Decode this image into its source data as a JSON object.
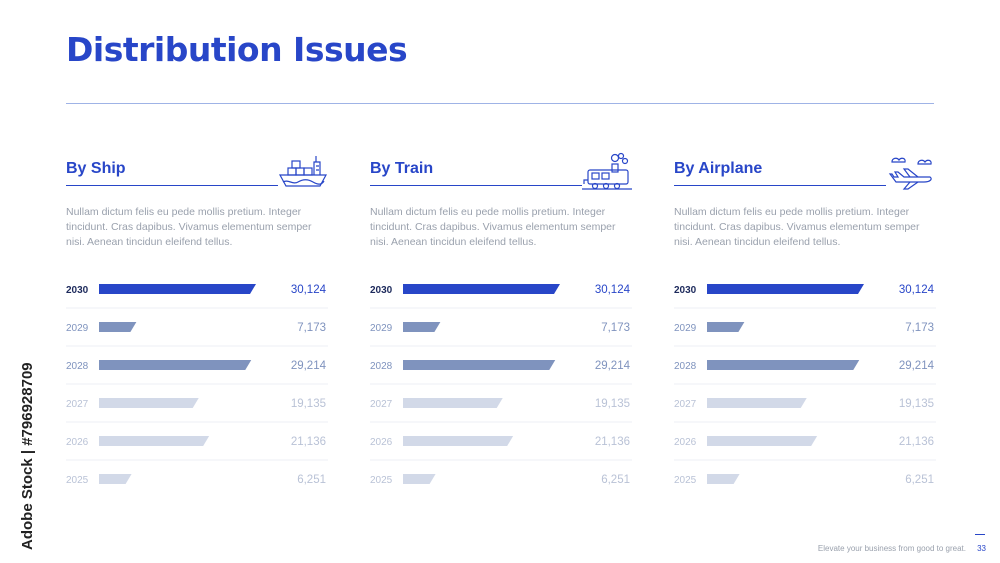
{
  "title": "Distribution Issues",
  "columns": [
    {
      "title": "By Ship",
      "icon": "ship-icon",
      "description": "Nullam dictum felis eu pede mollis pretium. Integer tincidunt. Cras dapibus. Vivamus elementum semper nisi. Aenean tincidun eleifend tellus."
    },
    {
      "title": "By Train",
      "icon": "train-icon",
      "description": "Nullam dictum felis eu pede mollis pretium. Integer tincidunt. Cras dapibus. Vivamus elementum semper nisi. Aenean tincidun eleifend tellus."
    },
    {
      "title": "By Airplane",
      "icon": "airplane-icon",
      "description": "Nullam dictum felis eu pede mollis pretium. Integer tincidunt. Cras dapibus. Vivamus elementum semper nisi. Aenean tincidun eleifend tellus."
    }
  ],
  "chart_data": [
    {
      "type": "bar",
      "orientation": "horizontal",
      "categories": [
        "2030",
        "2029",
        "2028",
        "2027",
        "2026",
        "2025"
      ],
      "values": [
        30124,
        7173,
        29214,
        19135,
        21136,
        6251
      ],
      "value_labels": [
        "30,124",
        "7,173",
        "29,214",
        "19,135",
        "21,136",
        "6,251"
      ],
      "colors": [
        "#2846c8",
        "#7f93be",
        "#7f93be",
        "#d2d9e8",
        "#d2d9e8",
        "#d2d9e8"
      ]
    },
    {
      "type": "bar",
      "orientation": "horizontal",
      "categories": [
        "2030",
        "2029",
        "2028",
        "2027",
        "2026",
        "2025"
      ],
      "values": [
        30124,
        7173,
        29214,
        19135,
        21136,
        6251
      ],
      "value_labels": [
        "30,124",
        "7,173",
        "29,214",
        "19,135",
        "21,136",
        "6,251"
      ],
      "colors": [
        "#2846c8",
        "#7f93be",
        "#7f93be",
        "#d2d9e8",
        "#d2d9e8",
        "#d2d9e8"
      ]
    },
    {
      "type": "bar",
      "orientation": "horizontal",
      "categories": [
        "2030",
        "2029",
        "2028",
        "2027",
        "2026",
        "2025"
      ],
      "values": [
        30124,
        7173,
        29214,
        19135,
        21136,
        6251
      ],
      "value_labels": [
        "30,124",
        "7,173",
        "29,214",
        "19,135",
        "21,136",
        "6,251"
      ],
      "colors": [
        "#2846c8",
        "#7f93be",
        "#7f93be",
        "#d2d9e8",
        "#d2d9e8",
        "#d2d9e8"
      ]
    }
  ],
  "footer": {
    "tagline": "Elevate your business from good to great.",
    "page": "33"
  },
  "watermark": "Adobe Stock | #796928709",
  "colors": {
    "accent": "#2846c8",
    "muted": "#9aa1ad"
  }
}
